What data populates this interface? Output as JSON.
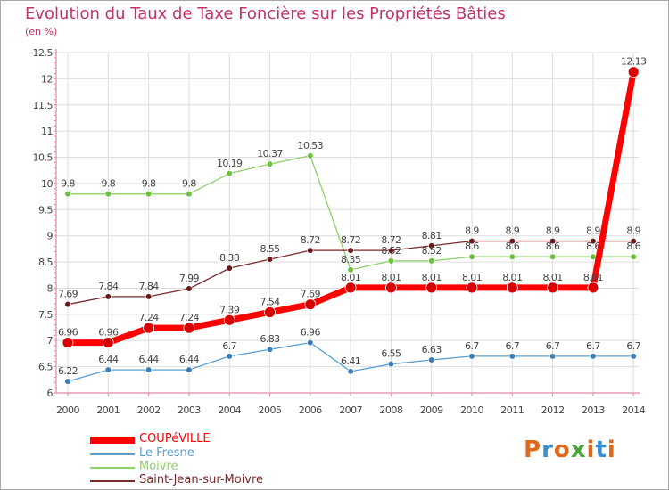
{
  "header": {
    "title": "Evolution du Taux de Taxe Foncière sur les Propriétés Bâties",
    "subtitle": "(en %)"
  },
  "logo": {
    "text": "Proxiti",
    "colors": [
      "#e06a1b",
      "#3b8fd0",
      "#e06a1b",
      "#4aa53b",
      "#e06a1b",
      "#3b8fd0",
      "#e06a1b"
    ]
  },
  "colors": {
    "title": "#c2336a",
    "axis": "#e08aa8",
    "grid": "#dddddd",
    "label": "#444444"
  },
  "chart_data": {
    "type": "line",
    "title": "Evolution du Taux de Taxe Foncière sur les Propriétés Bâties",
    "ylabel": "(en %)",
    "xlabel": "",
    "x": [
      "2000",
      "2001",
      "2002",
      "2003",
      "2004",
      "2005",
      "2006",
      "2007",
      "2008",
      "2009",
      "2010",
      "2011",
      "2012",
      "2013",
      "2014"
    ],
    "ylim": [
      6,
      12.5
    ],
    "yticks": [
      "6",
      "6.5",
      "7",
      "7.5",
      "8",
      "8.5",
      "9",
      "9.5",
      "10",
      "10.5",
      "11",
      "11.5",
      "12",
      "12.5"
    ],
    "grid": true,
    "legend": "bottom",
    "series": [
      {
        "name": "COUPéVILLE",
        "color": "#ff0000",
        "marker": "#d80000",
        "width": 7,
        "r": 6,
        "values": [
          6.96,
          6.96,
          7.24,
          7.24,
          7.39,
          7.54,
          7.69,
          8.01,
          8.01,
          8.01,
          8.01,
          8.01,
          8.01,
          8.01,
          12.13
        ],
        "labels": [
          "6.96",
          "6.96",
          "7.24",
          "7.24",
          "7.39",
          "7.54",
          "7.69",
          "8.01",
          "8.01",
          "8.01",
          "8.01",
          "8.01",
          "8.01",
          "8.01",
          "12.13"
        ]
      },
      {
        "name": "Le Fresne",
        "color": "#5a9fd4",
        "marker": "#3a7fbc",
        "width": 1.3,
        "r": 3.3,
        "values": [
          6.22,
          6.44,
          6.44,
          6.44,
          6.7,
          6.83,
          6.96,
          6.41,
          6.55,
          6.63,
          6.7,
          6.7,
          6.7,
          6.7,
          6.7
        ],
        "labels": [
          "6.22",
          "6.44",
          "6.44",
          "6.44",
          "6.7",
          "6.83",
          "6.96",
          "6.41",
          "6.55",
          "6.63",
          "6.7",
          "6.7",
          "6.7",
          "6.7",
          "6.7"
        ]
      },
      {
        "name": "Moivre",
        "color": "#8fd16b",
        "marker": "#6cc23c",
        "width": 1.3,
        "r": 3.3,
        "values": [
          9.8,
          9.8,
          9.8,
          9.8,
          10.19,
          10.37,
          10.53,
          8.35,
          8.52,
          8.52,
          8.6,
          8.6,
          8.6,
          8.6,
          8.6
        ],
        "labels": [
          "9.8",
          "9.8",
          "9.8",
          "9.8",
          "10.19",
          "10.37",
          "10.53",
          "8.35",
          "8.52",
          "8.52",
          "8.6",
          "8.6",
          "8.6",
          "8.6",
          "8.6"
        ]
      },
      {
        "name": "Saint-Jean-sur-Moivre",
        "color": "#7a2a2a",
        "marker": "#6a1a1a",
        "width": 1.3,
        "r": 3.3,
        "values": [
          7.69,
          7.84,
          7.84,
          7.99,
          8.38,
          8.55,
          8.72,
          8.72,
          8.72,
          8.81,
          8.9,
          8.9,
          8.9,
          8.9,
          8.9
        ],
        "labels": [
          "7.69",
          "7.84",
          "7.84",
          "7.99",
          "8.38",
          "8.55",
          "8.72",
          "8.72",
          "8.72",
          "8.81",
          "8.9",
          "8.9",
          "8.9",
          "8.9",
          "8.9"
        ]
      }
    ]
  }
}
